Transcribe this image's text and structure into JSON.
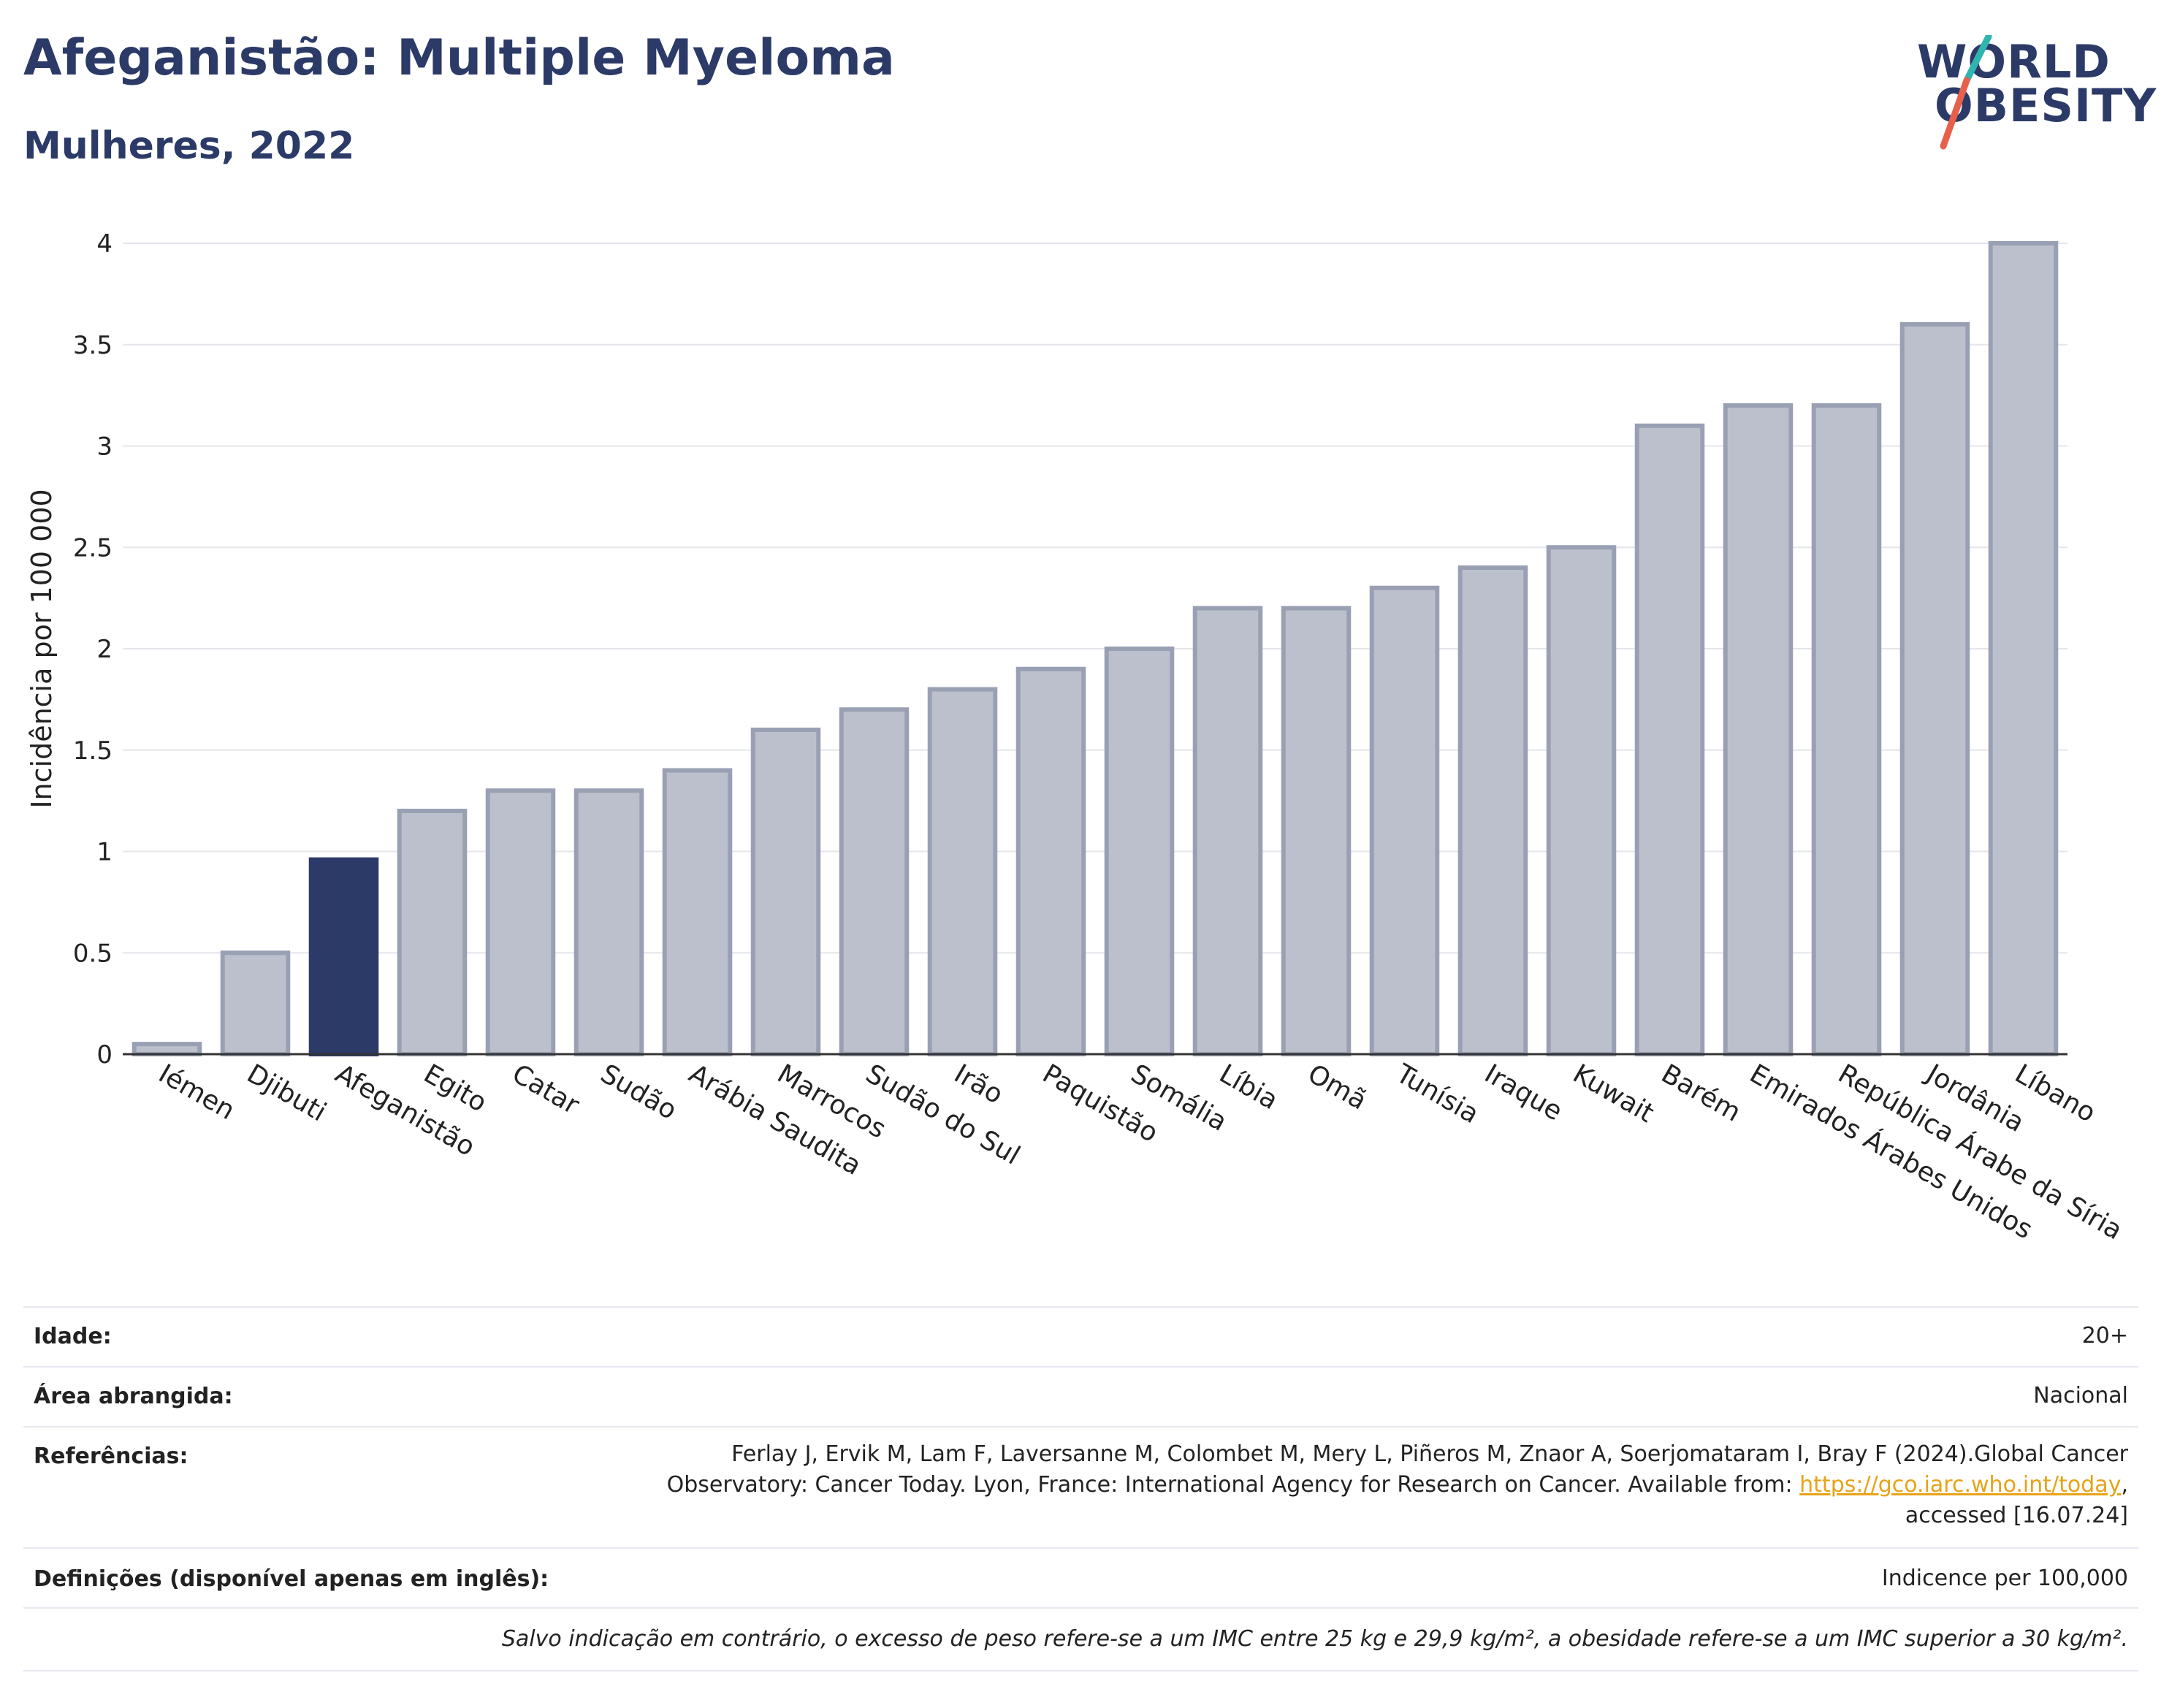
{
  "header": {
    "title": "Afeganistão: Multiple Myeloma",
    "subtitle": "Mulheres, 2022"
  },
  "logo": {
    "line1": "WORLD",
    "line2": "OBESITY",
    "accent_colors": [
      "#2fb5b0",
      "#e8604c"
    ]
  },
  "colors": {
    "highlight": "#2b3a67",
    "bar": "#bcc0cc",
    "bar_border": "#9aa0b4",
    "text": "#222222"
  },
  "chart_data": {
    "type": "bar",
    "ylabel": "Incidência por 100 000",
    "ylim": [
      0,
      4
    ],
    "yticks": [
      "0",
      "0.5",
      "1",
      "1.5",
      "2",
      "2.5",
      "3",
      "3.5",
      "4"
    ],
    "grid": true,
    "highlight": "Afeganistão",
    "categories": [
      "Iémen",
      "Djibuti",
      "Afeganistão",
      "Egito",
      "Catar",
      "Sudão",
      "Arábia Saudita",
      "Marrocos",
      "Sudão do Sul",
      "Irão",
      "Paquistão",
      "Somália",
      "Líbia",
      "Omã",
      "Tunísia",
      "Iraque",
      "Kuwait",
      "Barém",
      "Emirados Árabes Unidos",
      "República Árabe da Síria",
      "Jordânia",
      "Líbano"
    ],
    "values": [
      0.05,
      0.5,
      0.96,
      1.2,
      1.3,
      1.3,
      1.4,
      1.6,
      1.7,
      1.8,
      1.9,
      2.0,
      2.2,
      2.2,
      2.3,
      2.4,
      2.5,
      3.1,
      3.2,
      3.2,
      3.6,
      4.0
    ]
  },
  "info": {
    "age_label": "Idade:",
    "age_value": "20+",
    "area_label": "Área abrangida:",
    "area_value": "Nacional",
    "ref_label": "Referências:",
    "ref_line1": "Ferlay J, Ervik M, Lam F, Laversanne M, Colombet M, Mery L, Piñeros M, Znaor A, Soerjomataram I, Bray F (2024).Global Cancer",
    "ref_line2": "Observatory: Cancer Today. Lyon, France: International Agency for Research on Cancer. Available from: ",
    "ref_link": "https://gco.iarc.who.int/today",
    "ref_line2_end": ",",
    "ref_line3": "accessed [16.07.24]",
    "def_label": "Definições (disponível apenas em inglês):",
    "def_value": "Indicence per 100,000",
    "note": "Salvo indicação em contrário, o excesso de peso refere-se a um IMC entre 25 kg e 29,9 kg/m², a obesidade refere-se a um IMC superior a 30 kg/m²."
  }
}
